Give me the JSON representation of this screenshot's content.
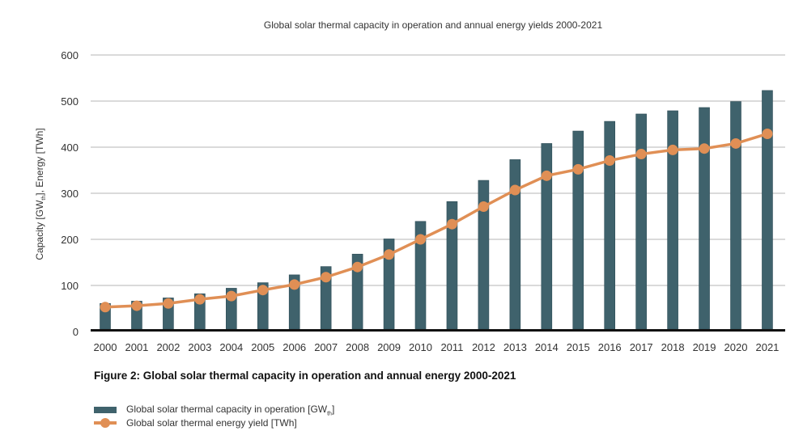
{
  "chart_data": {
    "type": "bar+line",
    "title": "Global solar thermal capacity in operation and annual energy yields 2000-2021",
    "ylabel": {
      "main": "Capacity [GW",
      "sub": "th",
      "rest": "], Energy [TWh]"
    },
    "ylim": [
      0,
      600
    ],
    "yticks": [
      0,
      100,
      200,
      300,
      400,
      500,
      600
    ],
    "grid": true,
    "categories": [
      "2000",
      "2001",
      "2002",
      "2003",
      "2004",
      "2005",
      "2006",
      "2007",
      "2008",
      "2009",
      "2010",
      "2011",
      "2012",
      "2013",
      "2014",
      "2015",
      "2016",
      "2017",
      "2018",
      "2019",
      "2020",
      "2021"
    ],
    "series": [
      {
        "name": "Global solar thermal capacity in operation [GWth]",
        "name_main": "Global solar thermal capacity in operation [GW",
        "name_sub": "th",
        "name_rest": "]",
        "type": "bar",
        "color": "#3f626c",
        "values": [
          61,
          66,
          73,
          82,
          94,
          106,
          123,
          141,
          168,
          201,
          239,
          282,
          328,
          373,
          408,
          435,
          456,
          472,
          479,
          486,
          499,
          523
        ]
      },
      {
        "name": "Global solar thermal energy yield [TWh]",
        "type": "line",
        "color": "#e08f55",
        "values": [
          53,
          56,
          61,
          70,
          77,
          90,
          102,
          118,
          140,
          167,
          200,
          233,
          271,
          307,
          338,
          352,
          371,
          385,
          394,
          397,
          408,
          429
        ]
      }
    ],
    "legend_position": "bottom-left"
  },
  "caption": "Figure 2: Global solar thermal capacity in operation and annual energy 2000-2021"
}
